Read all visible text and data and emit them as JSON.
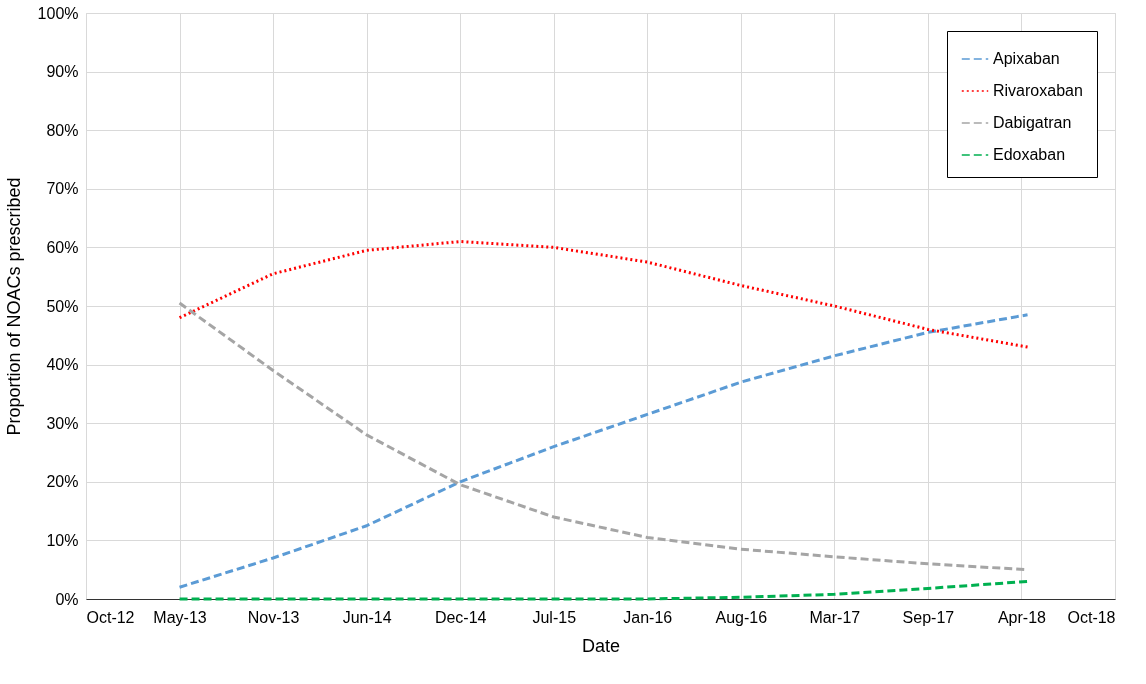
{
  "chart_data": {
    "type": "line",
    "xlabel": "Date",
    "ylabel": "Proportion of NOACs prescribed",
    "x": [
      "2013-05-03",
      "2013-11-19",
      "2014-06-07",
      "2014-12-24",
      "2015-07-12",
      "2016-01-28",
      "2016-08-15",
      "2017-03-03",
      "2017-09-19",
      "2018-04-20"
    ],
    "series": [
      {
        "name": "Apixaban",
        "color": "#5b9bd5",
        "line_style": "dashed",
        "values": [
          2,
          7,
          12.5,
          20,
          26,
          31.5,
          37,
          41.5,
          45.5,
          48.5
        ]
      },
      {
        "name": "Rivaroxaban",
        "color": "#ff0000",
        "line_style": "dotted",
        "values": [
          48,
          55.5,
          59.5,
          61,
          60,
          57.5,
          53.5,
          50,
          46,
          43
        ]
      },
      {
        "name": "Dabigatran",
        "color": "#a5a5a5",
        "line_style": "dashed",
        "values": [
          50.5,
          39,
          28,
          19.5,
          14,
          10.5,
          8.5,
          7.2,
          6,
          5
        ]
      },
      {
        "name": "Edoxaban",
        "color": "#00b050",
        "line_style": "dashed",
        "values": [
          0,
          0,
          0,
          0,
          0,
          0,
          0.3,
          0.8,
          1.8,
          3
        ]
      }
    ],
    "xlim": [
      "2012-10-15",
      "2018-10-24"
    ],
    "xticks": [
      {
        "value": "2012-10-15",
        "label": "Oct-12"
      },
      {
        "value": "2013-05-03",
        "label": "May-13"
      },
      {
        "value": "2013-11-19",
        "label": "Nov-13"
      },
      {
        "value": "2014-06-07",
        "label": "Jun-14"
      },
      {
        "value": "2014-12-24",
        "label": "Dec-14"
      },
      {
        "value": "2015-07-12",
        "label": "Jul-15"
      },
      {
        "value": "2016-01-28",
        "label": "Jan-16"
      },
      {
        "value": "2016-08-15",
        "label": "Aug-16"
      },
      {
        "value": "2017-03-03",
        "label": "Mar-17"
      },
      {
        "value": "2017-09-19",
        "label": "Sep-17"
      },
      {
        "value": "2018-04-07",
        "label": "Apr-18"
      },
      {
        "value": "2018-10-24",
        "label": "Oct-18"
      }
    ],
    "ylim": [
      0,
      100
    ],
    "yticks": [
      {
        "value": 0,
        "label": "0%"
      },
      {
        "value": 10,
        "label": "10%"
      },
      {
        "value": 20,
        "label": "20%"
      },
      {
        "value": 30,
        "label": "30%"
      },
      {
        "value": 40,
        "label": "40%"
      },
      {
        "value": 50,
        "label": "50%"
      },
      {
        "value": 60,
        "label": "60%"
      },
      {
        "value": 70,
        "label": "70%"
      },
      {
        "value": 80,
        "label": "80%"
      },
      {
        "value": 90,
        "label": "90%"
      },
      {
        "value": 100,
        "label": "100%"
      }
    ],
    "grid": true,
    "legend": "top right"
  }
}
